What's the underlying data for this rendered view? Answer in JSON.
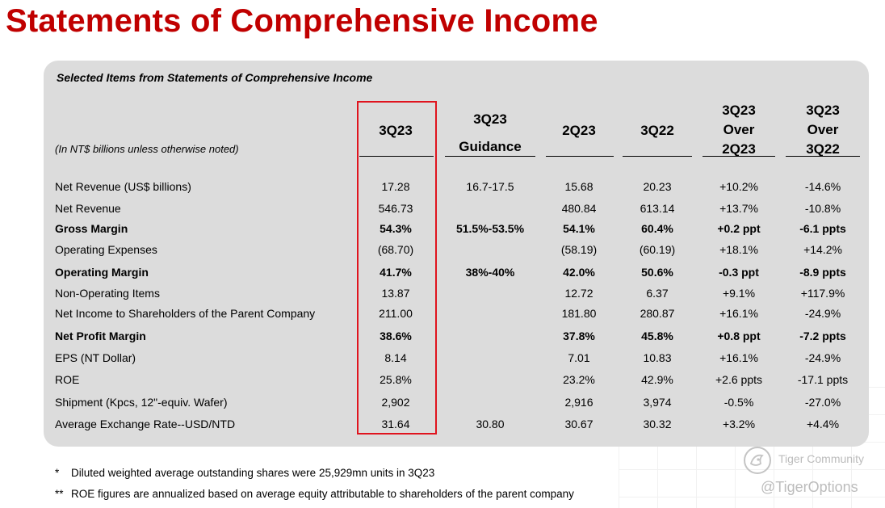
{
  "page_title": "Statements of Comprehensive Income",
  "panel": {
    "subtitle": "Selected Items from Statements of Comprehensive Income",
    "unit_note": "(In NT$ billions unless otherwise noted)"
  },
  "columns": [
    {
      "l1": "3Q23",
      "l2": "",
      "l3": ""
    },
    {
      "l1": "3Q23",
      "l2": "Guidance",
      "l3": ""
    },
    {
      "l1": "2Q23",
      "l2": "",
      "l3": ""
    },
    {
      "l1": "3Q22",
      "l2": "",
      "l3": ""
    },
    {
      "l1": "3Q23",
      "l2": "Over",
      "l3": "2Q23"
    },
    {
      "l1": "3Q23",
      "l2": "Over",
      "l3": "3Q22"
    }
  ],
  "rows": [
    {
      "label": "Net Revenue (US$ billions)",
      "bold": false,
      "values": [
        "17.28",
        "16.7-17.5",
        "15.68",
        "20.23",
        "+10.2%",
        "-14.6%"
      ]
    },
    {
      "label": "Net Revenue",
      "bold": false,
      "values": [
        "546.73",
        "",
        "480.84",
        "613.14",
        "+13.7%",
        "-10.8%"
      ]
    },
    {
      "label": "Gross Margin",
      "bold": true,
      "values": [
        "54.3%",
        "51.5%-53.5%",
        "54.1%",
        "60.4%",
        "+0.2 ppt",
        "-6.1 ppts"
      ]
    },
    {
      "label": "Operating Expenses",
      "bold": false,
      "values": [
        "(68.70)",
        "",
        "(58.19)",
        "(60.19)",
        "+18.1%",
        "+14.2%"
      ]
    },
    {
      "label": "Operating Margin",
      "bold": true,
      "values": [
        "41.7%",
        "38%-40%",
        "42.0%",
        "50.6%",
        "-0.3 ppt",
        "-8.9 ppts"
      ]
    },
    {
      "label": "Non-Operating Items",
      "bold": false,
      "values": [
        "13.87",
        "",
        "12.72",
        "6.37",
        "+9.1%",
        "+117.9%"
      ]
    },
    {
      "label": "Net Income to Shareholders of the Parent Company",
      "bold": false,
      "values": [
        "211.00",
        "",
        "181.80",
        "280.87",
        "+16.1%",
        "-24.9%"
      ]
    },
    {
      "label": "Net Profit Margin",
      "bold": true,
      "values": [
        "38.6%",
        "",
        "37.8%",
        "45.8%",
        "+0.8 ppt",
        "-7.2 ppts"
      ]
    },
    {
      "label": "EPS (NT Dollar)",
      "bold": false,
      "values": [
        "8.14",
        "",
        "7.01",
        "10.83",
        "+16.1%",
        "-24.9%"
      ]
    },
    {
      "label": "ROE",
      "bold": false,
      "values": [
        "25.8%",
        "",
        "23.2%",
        "42.9%",
        "+2.6 ppts",
        "-17.1 ppts"
      ]
    },
    {
      "label": "Shipment (Kpcs, 12\"-equiv. Wafer)",
      "bold": false,
      "values": [
        "2,902",
        "",
        "2,916",
        "3,974",
        "-0.5%",
        "-27.0%"
      ]
    },
    {
      "label": "Average Exchange Rate--USD/NTD",
      "bold": false,
      "values": [
        "31.64",
        "30.80",
        "30.67",
        "30.32",
        "+3.2%",
        "+4.4%"
      ]
    }
  ],
  "footnotes": [
    {
      "mark": "*",
      "text": "Diluted weighted average outstanding shares were 25,929mn units in 3Q23"
    },
    {
      "mark": "**",
      "text": "ROE figures are annualized based on average equity attributable to shareholders of the parent company"
    }
  ],
  "watermark": {
    "name": "Tiger Community",
    "handle": "@TigerOptions"
  },
  "colors": {
    "title": "#c00000",
    "panel_bg": "#dcdcdc",
    "highlight": "#e0141e"
  }
}
